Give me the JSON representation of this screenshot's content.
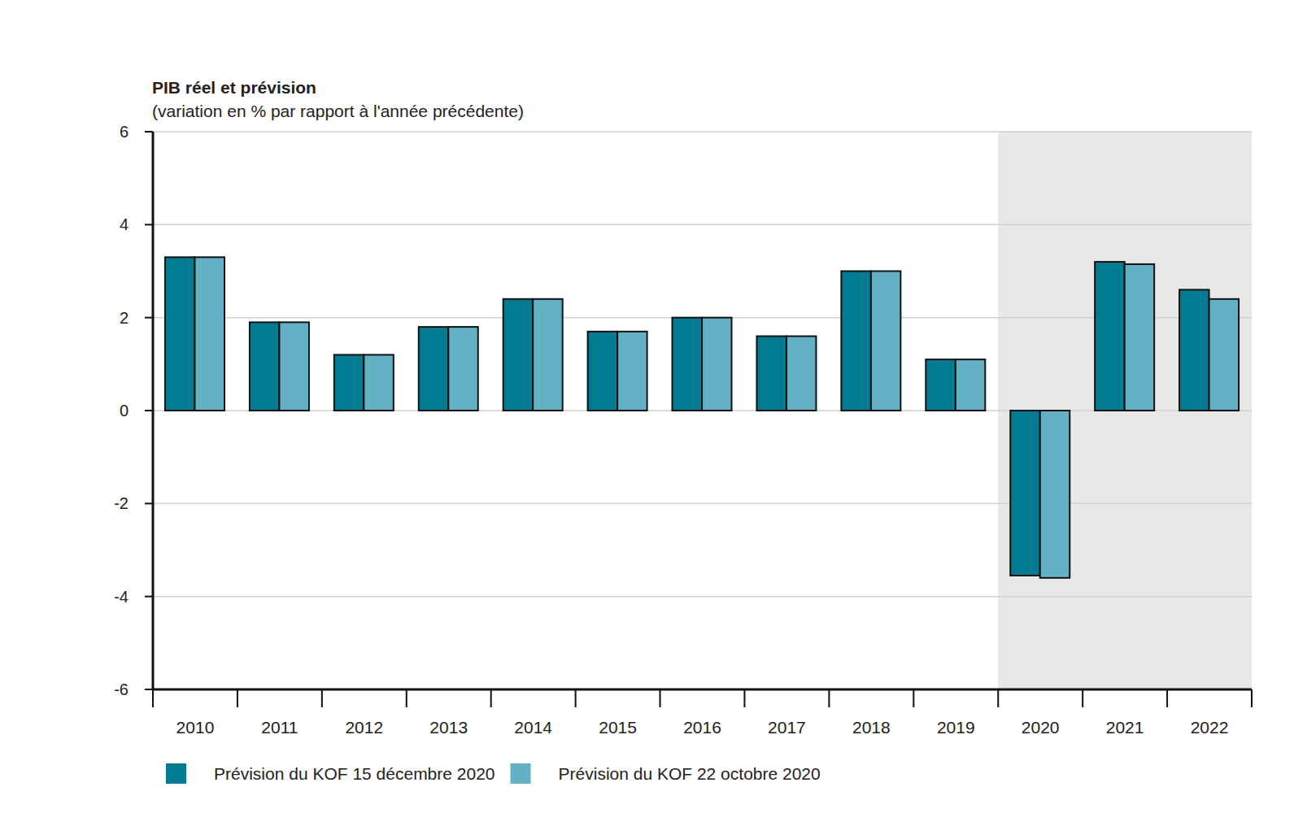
{
  "chart_data": {
    "type": "bar",
    "title": "PIB réel et prévision",
    "subtitle": "(variation en % par rapport à l'année précédente)",
    "categories": [
      "2010",
      "2011",
      "2012",
      "2013",
      "2014",
      "2015",
      "2016",
      "2017",
      "2018",
      "2019",
      "2020",
      "2021",
      "2022"
    ],
    "series": [
      {
        "name": "Prévision du KOF 15 décembre 2020",
        "color": "#007b91",
        "values": [
          3.3,
          1.9,
          1.2,
          1.8,
          2.4,
          1.7,
          2.0,
          1.6,
          3.0,
          1.1,
          -3.55,
          3.2,
          2.6
        ]
      },
      {
        "name": "Prévision du KOF 22 octobre 2020",
        "color": "#62b1c4",
        "values": [
          3.3,
          1.9,
          1.2,
          1.8,
          2.4,
          1.7,
          2.0,
          1.6,
          3.0,
          1.1,
          -3.6,
          3.15,
          2.4
        ]
      }
    ],
    "ylim": [
      -6,
      6
    ],
    "yticks": [
      -6,
      -4,
      -2,
      0,
      2,
      4,
      6
    ],
    "grid": true,
    "legend": "bottom"
  }
}
